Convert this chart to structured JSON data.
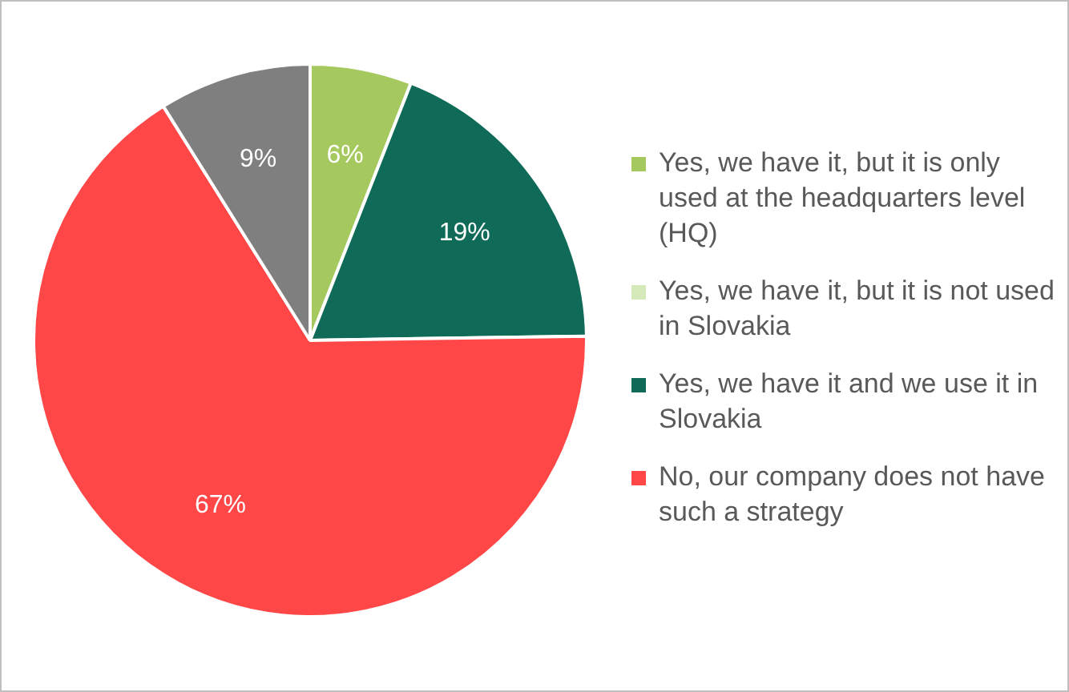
{
  "chart_data": {
    "type": "pie",
    "categories": [
      "Yes, we have it, but it is only used at the headquarters level (HQ)",
      "Yes, we have it, but it is not used in Slovakia",
      "Yes, we have it and we use it in Slovakia",
      "No, our company does not have such a strategy",
      null
    ],
    "values": [
      6,
      0,
      19,
      67,
      9
    ],
    "value_labels": [
      "6%",
      null,
      "19%",
      "67%",
      "9%"
    ],
    "colors": [
      "#a5c95e",
      "#d6e9b8",
      "#0f6b58",
      "#ff4747",
      "#7f7f7f"
    ],
    "legend": "right"
  }
}
